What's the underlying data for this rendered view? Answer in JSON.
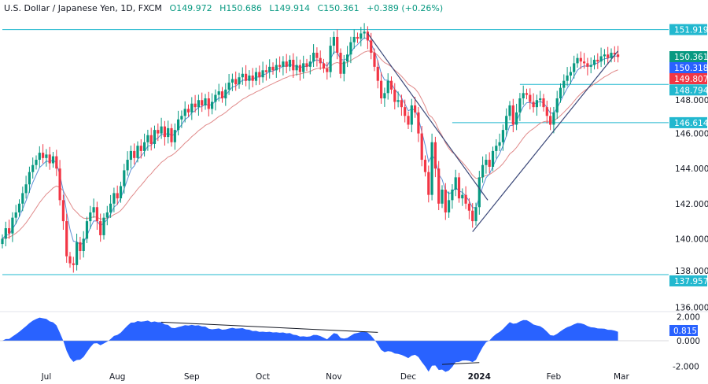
{
  "header": {
    "symbol": "U.S. Dollar / Japanese Yen, 1D, FXCM",
    "open": "O149.972",
    "high": "H150.686",
    "low": "L149.914",
    "close": "C150.361",
    "change": "+0.389 (+0.26%)"
  },
  "colors": {
    "up": "#089981",
    "down": "#f23645",
    "level_line": "#22b8cf",
    "fast_ma": "#5b8fd6",
    "slow_ma": "#e08a8a",
    "oscillator": "#2962ff",
    "trendline": "#3d4a7a"
  },
  "chart_data": {
    "type": "candlestick",
    "x_tick_labels": [
      {
        "index": 13,
        "label": "Jul"
      },
      {
        "index": 34,
        "label": "Aug"
      },
      {
        "index": 56,
        "label": "Sep"
      },
      {
        "index": 77,
        "label": "Oct"
      },
      {
        "index": 98,
        "label": "Nov"
      },
      {
        "index": 120,
        "label": "Dec"
      },
      {
        "index": 141,
        "label": "2024"
      },
      {
        "index": 163,
        "label": "Feb"
      },
      {
        "index": 183,
        "label": "Mar"
      }
    ],
    "y_tick_labels": [
      "136.000",
      "138.000",
      "140.000",
      "142.000",
      "144.000",
      "146.000",
      "148.000"
    ],
    "ylim": [
      135.5,
      152.5
    ],
    "closes": [
      140.0,
      140.6,
      140.3,
      141.2,
      141.5,
      142.0,
      142.6,
      143.1,
      143.8,
      144.2,
      144.5,
      144.9,
      144.6,
      144.8,
      144.3,
      144.7,
      144.0,
      142.2,
      141.0,
      139.0,
      138.6,
      138.5,
      139.8,
      139.3,
      140.0,
      141.0,
      141.5,
      141.8,
      141.0,
      140.2,
      141.2,
      141.5,
      142.0,
      142.6,
      142.3,
      143.0,
      143.9,
      144.5,
      145.0,
      144.6,
      145.3,
      145.0,
      145.5,
      145.9,
      145.4,
      146.2,
      146.0,
      146.4,
      145.8,
      146.3,
      145.5,
      146.2,
      146.8,
      147.0,
      147.4,
      147.2,
      147.7,
      147.5,
      147.9,
      147.6,
      148.0,
      147.4,
      147.8,
      148.2,
      148.4,
      148.0,
      148.5,
      148.9,
      149.1,
      148.8,
      149.2,
      149.4,
      149.0,
      149.3,
      149.0,
      149.5,
      149.2,
      149.6,
      149.5,
      149.8,
      149.6,
      149.9,
      149.8,
      150.1,
      149.8,
      150.2,
      149.6,
      149.9,
      149.5,
      150.0,
      149.8,
      150.1,
      150.6,
      150.3,
      150.0,
      149.7,
      149.5,
      151.0,
      151.5,
      150.6,
      149.4,
      150.1,
      150.5,
      151.2,
      151.5,
      151.4,
      151.7,
      151.8,
      151.3,
      150.6,
      149.8,
      149.0,
      148.0,
      148.3,
      149.0,
      148.5,
      147.8,
      147.9,
      147.5,
      147.0,
      146.5,
      147.6,
      147.2,
      146.0,
      144.5,
      143.8,
      142.5,
      145.5,
      144.0,
      142.0,
      142.8,
      141.5,
      142.2,
      142.8,
      143.5,
      142.3,
      142.5,
      142.0,
      141.6,
      141.0,
      141.8,
      143.5,
      144.2,
      144.5,
      144.1,
      145.0,
      145.3,
      145.5,
      146.2,
      147.0,
      147.6,
      146.5,
      147.2,
      148.0,
      148.3,
      148.2,
      147.8,
      147.5,
      147.9,
      148.0,
      147.5,
      147.0,
      146.5,
      147.2,
      148.0,
      148.6,
      149.0,
      149.3,
      149.5,
      150.0,
      150.3,
      150.1,
      150.0,
      149.8,
      149.9,
      150.2,
      150.1,
      150.4,
      150.5,
      150.3,
      150.6,
      150.5,
      150.36
    ],
    "levels": [
      {
        "price": 151.919,
        "label": "151.919",
        "from_index": 0
      },
      {
        "price": 148.794,
        "label": "148.794",
        "from_index": 153
      },
      {
        "price": 146.614,
        "label": "146.614",
        "from_index": 133
      },
      {
        "price": 137.957,
        "label": "137.957",
        "from_index": 0
      }
    ],
    "price_tags": [
      {
        "label": "150.361",
        "price": 150.361,
        "color": "#089981"
      },
      {
        "label": "150.318",
        "price": 150.318,
        "color": "#2962ff"
      },
      {
        "label": "149.807",
        "price": 149.807,
        "color": "#f23645"
      }
    ],
    "trendlines": [
      {
        "from": [
          108,
          151.7
        ],
        "to": [
          143.5,
          142.2
        ]
      },
      {
        "from": [
          139,
          140.4
        ],
        "to": [
          182,
          150.7
        ]
      }
    ],
    "oscillator": {
      "y_tick_labels": [
        "2.000",
        "0.000",
        "-2.000"
      ],
      "ylim": [
        -2.3,
        2.3
      ],
      "current_label": "0.815",
      "trendlines": [
        {
          "from": [
            47,
            1.45
          ],
          "to": [
            111,
            0.65
          ]
        },
        {
          "from": [
            130,
            -1.85
          ],
          "to": [
            141,
            -1.7
          ]
        }
      ]
    }
  }
}
